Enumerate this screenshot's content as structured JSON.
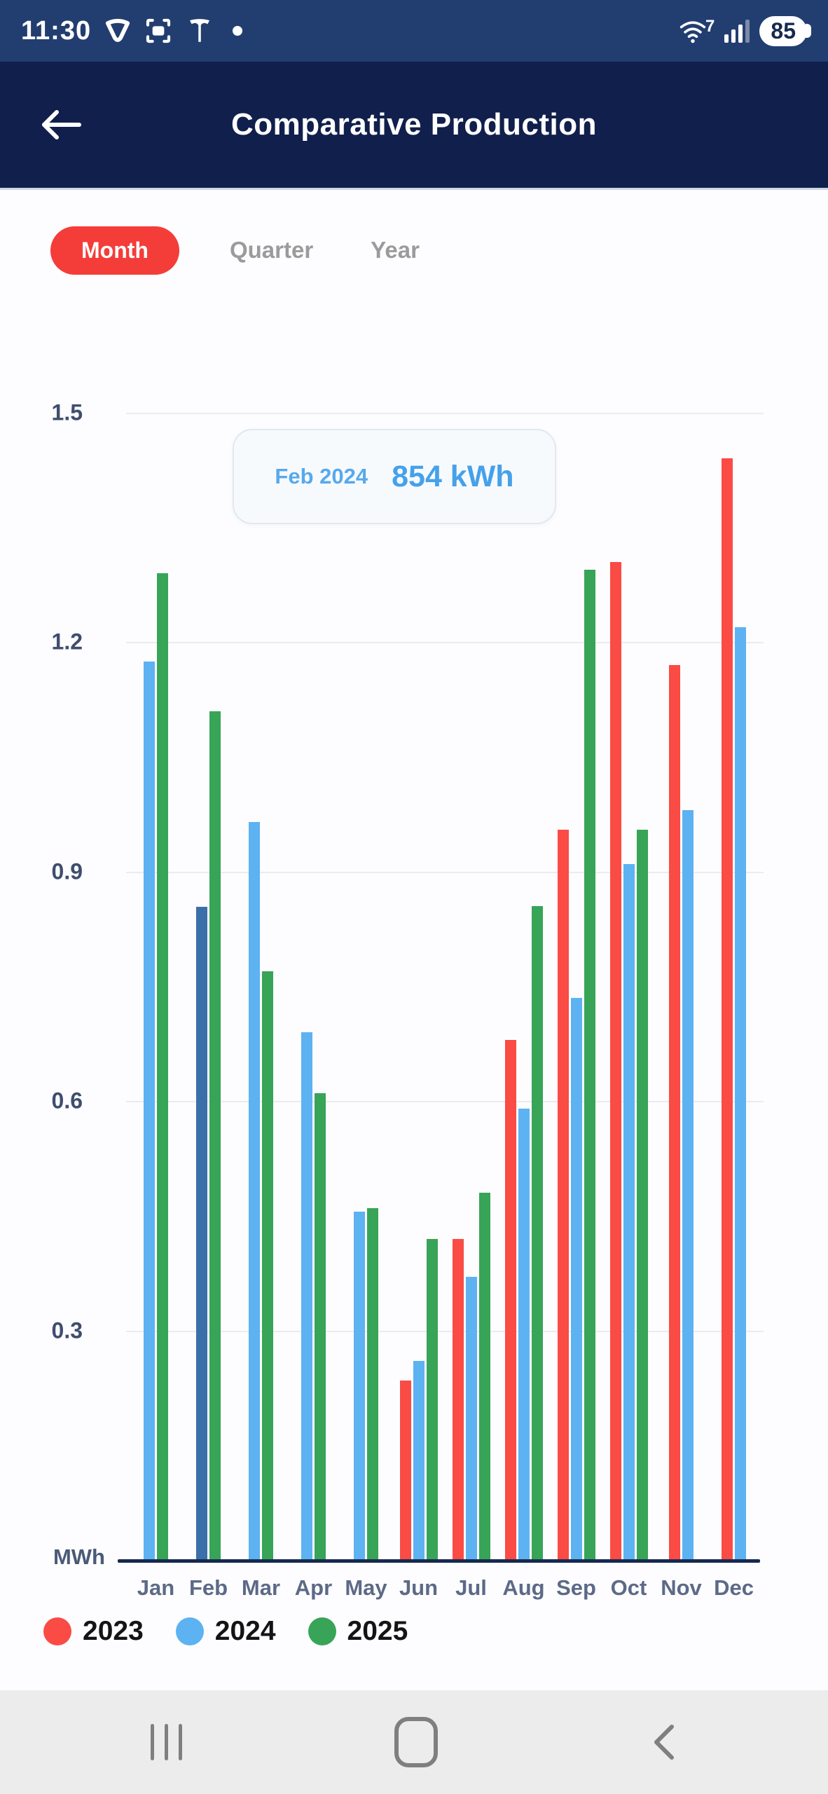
{
  "status_bar": {
    "time": "11:30",
    "wifi_badge": "7",
    "battery_percent": "85"
  },
  "header": {
    "title": "Comparative Production"
  },
  "tabs": {
    "items": [
      {
        "label": "Month",
        "active": true
      },
      {
        "label": "Quarter",
        "active": false
      },
      {
        "label": "Year",
        "active": false
      }
    ],
    "active_color": "#f43d39"
  },
  "tooltip": {
    "label": "Feb 2024",
    "value": "854 kWh"
  },
  "chart_data": {
    "type": "bar",
    "title": "Comparative Production",
    "unit_label": "MWh",
    "categories": [
      "Jan",
      "Feb",
      "Mar",
      "Apr",
      "May",
      "Jun",
      "Jul",
      "Aug",
      "Sep",
      "Oct",
      "Nov",
      "Dec"
    ],
    "y_ticks": [
      1.5,
      1.2,
      0.9,
      0.6,
      0.3
    ],
    "ylim": [
      0,
      1.5
    ],
    "grid": true,
    "legend_position": "bottom",
    "series": [
      {
        "name": "2023",
        "color": "#fa4b45",
        "values": [
          null,
          null,
          null,
          null,
          null,
          0.235,
          0.42,
          0.68,
          0.955,
          1.305,
          1.17,
          1.44
        ]
      },
      {
        "name": "2024",
        "color": "#5db2f2",
        "values": [
          1.175,
          0.854,
          0.965,
          0.69,
          0.455,
          0.26,
          0.37,
          0.59,
          0.735,
          0.91,
          0.98,
          1.22
        ]
      },
      {
        "name": "2025",
        "color": "#37a457",
        "values": [
          1.29,
          1.11,
          0.77,
          0.61,
          0.46,
          0.42,
          0.48,
          0.855,
          1.295,
          0.955,
          null,
          null
        ]
      }
    ],
    "highlight": {
      "series": "2024",
      "category": "Feb",
      "color": "#3b6fa9"
    },
    "axis_color": "#16294f",
    "grid_color": "#ebecef"
  }
}
